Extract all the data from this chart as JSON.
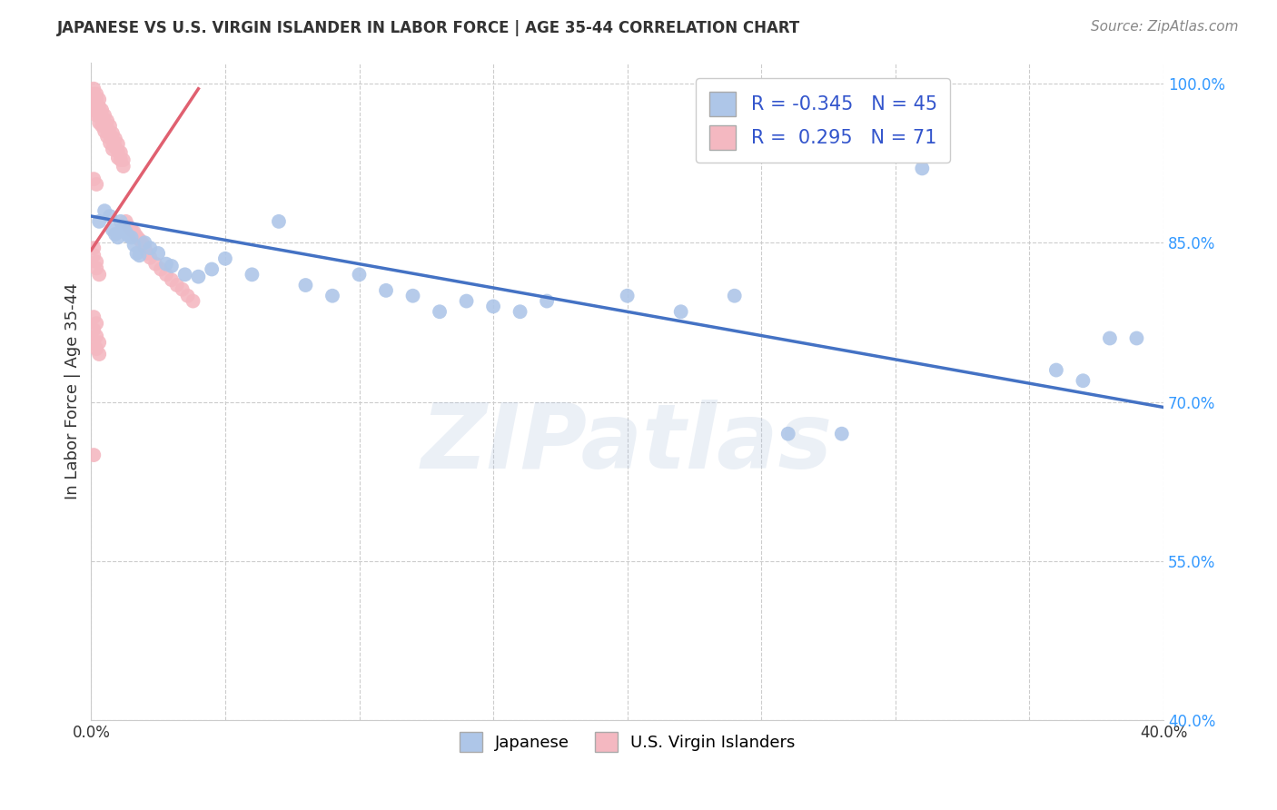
{
  "title": "JAPANESE VS U.S. VIRGIN ISLANDER IN LABOR FORCE | AGE 35-44 CORRELATION CHART",
  "source": "Source: ZipAtlas.com",
  "ylabel": "In Labor Force | Age 35-44",
  "watermark": "ZIPatlas",
  "xlim": [
    0.0,
    0.4
  ],
  "ylim": [
    0.4,
    1.02
  ],
  "xticks": [
    0.0,
    0.05,
    0.1,
    0.15,
    0.2,
    0.25,
    0.3,
    0.35,
    0.4
  ],
  "xtick_labels_show": [
    "0.0%",
    "40.0%"
  ],
  "xtick_labels_pos": [
    0.0,
    0.4
  ],
  "yticks": [
    0.4,
    0.55,
    0.7,
    0.85,
    1.0
  ],
  "ytick_labels": [
    "40.0%",
    "55.0%",
    "70.0%",
    "85.0%",
    "100.0%"
  ],
  "grid_color": "#cccccc",
  "background_color": "#ffffff",
  "japanese_color": "#aec6e8",
  "vi_color": "#f4b8c1",
  "japanese_line_color": "#4472c4",
  "vi_line_color": "#e06070",
  "japanese_R": -0.345,
  "japanese_N": 45,
  "vi_R": 0.295,
  "vi_N": 71,
  "japanese_line_x0": 0.0,
  "japanese_line_y0": 0.875,
  "japanese_line_x1": 0.4,
  "japanese_line_y1": 0.695,
  "vi_line_x0": 0.0,
  "vi_line_y0": 0.843,
  "vi_line_x1": 0.04,
  "vi_line_y1": 0.995,
  "japanese_scatter_x": [
    0.003,
    0.005,
    0.007,
    0.008,
    0.009,
    0.01,
    0.011,
    0.012,
    0.013,
    0.014,
    0.015,
    0.016,
    0.017,
    0.018,
    0.02,
    0.022,
    0.025,
    0.028,
    0.03,
    0.035,
    0.04,
    0.045,
    0.05,
    0.06,
    0.07,
    0.08,
    0.09,
    0.1,
    0.11,
    0.12,
    0.13,
    0.14,
    0.15,
    0.16,
    0.17,
    0.2,
    0.22,
    0.24,
    0.26,
    0.28,
    0.31,
    0.36,
    0.37,
    0.38,
    0.39
  ],
  "japanese_scatter_y": [
    0.87,
    0.88,
    0.875,
    0.862,
    0.858,
    0.855,
    0.87,
    0.865,
    0.86,
    0.856,
    0.855,
    0.848,
    0.84,
    0.838,
    0.85,
    0.845,
    0.84,
    0.83,
    0.828,
    0.82,
    0.818,
    0.825,
    0.835,
    0.82,
    0.87,
    0.81,
    0.8,
    0.82,
    0.805,
    0.8,
    0.785,
    0.795,
    0.79,
    0.785,
    0.795,
    0.8,
    0.785,
    0.8,
    0.67,
    0.67,
    0.92,
    0.73,
    0.72,
    0.76,
    0.76
  ],
  "vi_scatter_x": [
    0.001,
    0.001,
    0.001,
    0.001,
    0.001,
    0.002,
    0.002,
    0.002,
    0.002,
    0.003,
    0.003,
    0.003,
    0.003,
    0.004,
    0.004,
    0.004,
    0.005,
    0.005,
    0.005,
    0.006,
    0.006,
    0.006,
    0.007,
    0.007,
    0.007,
    0.008,
    0.008,
    0.008,
    0.009,
    0.009,
    0.01,
    0.01,
    0.01,
    0.011,
    0.011,
    0.012,
    0.012,
    0.013,
    0.014,
    0.015,
    0.016,
    0.017,
    0.018,
    0.019,
    0.02,
    0.021,
    0.022,
    0.024,
    0.026,
    0.028,
    0.03,
    0.032,
    0.034,
    0.036,
    0.038,
    0.001,
    0.001,
    0.002,
    0.002,
    0.003,
    0.001,
    0.002,
    0.001,
    0.002,
    0.003,
    0.001,
    0.002,
    0.001,
    0.002,
    0.003,
    0.001
  ],
  "vi_scatter_y": [
    0.995,
    0.99,
    0.985,
    0.98,
    0.975,
    0.99,
    0.985,
    0.978,
    0.97,
    0.985,
    0.978,
    0.97,
    0.963,
    0.975,
    0.968,
    0.96,
    0.97,
    0.962,
    0.955,
    0.965,
    0.958,
    0.95,
    0.96,
    0.952,
    0.944,
    0.953,
    0.946,
    0.938,
    0.948,
    0.94,
    0.943,
    0.936,
    0.93,
    0.935,
    0.928,
    0.928,
    0.922,
    0.87,
    0.865,
    0.862,
    0.86,
    0.856,
    0.853,
    0.85,
    0.845,
    0.84,
    0.836,
    0.83,
    0.825,
    0.82,
    0.815,
    0.81,
    0.806,
    0.8,
    0.795,
    0.845,
    0.838,
    0.832,
    0.826,
    0.82,
    0.78,
    0.774,
    0.768,
    0.762,
    0.756,
    0.91,
    0.905,
    0.755,
    0.75,
    0.745,
    0.65
  ]
}
